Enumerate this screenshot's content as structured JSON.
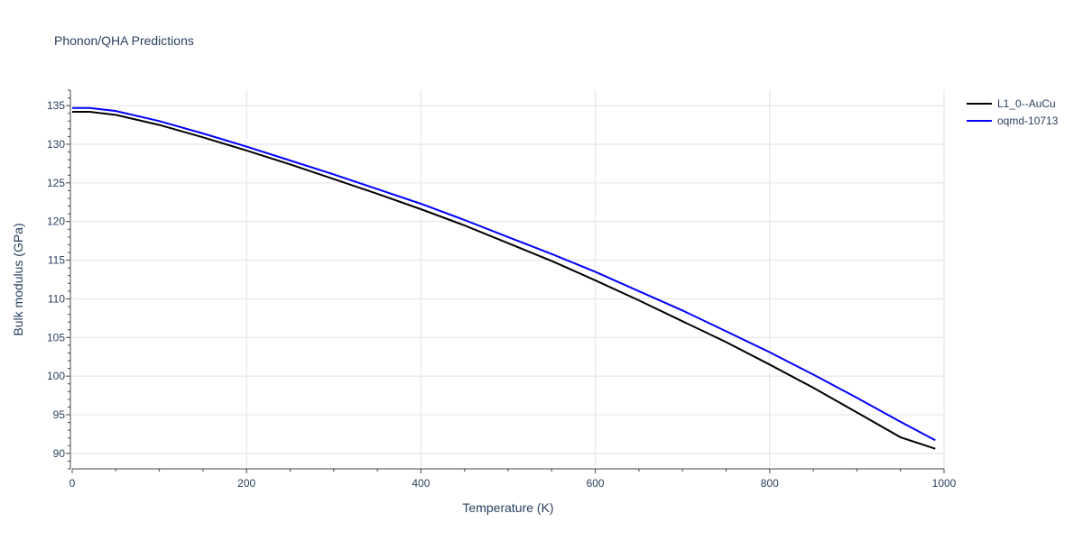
{
  "chart_data": {
    "type": "line",
    "title": "Phonon/QHA Predictions",
    "xlabel": "Temperature (K)",
    "ylabel": "Bulk modulus (GPa)",
    "xlim": [
      0,
      1000
    ],
    "ylim": [
      88,
      137
    ],
    "x_ticks": [
      0,
      200,
      400,
      600,
      800,
      1000
    ],
    "y_ticks": [
      90,
      95,
      100,
      105,
      110,
      115,
      120,
      125,
      130,
      135
    ],
    "grid": true,
    "legend_position": "top-right",
    "series": [
      {
        "name": "L1_0--AuCu",
        "color": "#000000",
        "x": [
          0,
          20,
          50,
          100,
          150,
          200,
          250,
          300,
          350,
          400,
          450,
          500,
          550,
          600,
          650,
          700,
          750,
          800,
          850,
          900,
          950,
          990
        ],
        "values": [
          134.2,
          134.2,
          133.8,
          132.5,
          130.9,
          129.2,
          127.4,
          125.5,
          123.6,
          121.6,
          119.5,
          117.2,
          114.9,
          112.4,
          109.8,
          107.1,
          104.4,
          101.5,
          98.5,
          95.3,
          92.1,
          90.6
        ]
      },
      {
        "name": "oqmd-10713",
        "color": "#0000ff",
        "x": [
          0,
          20,
          50,
          100,
          150,
          200,
          250,
          300,
          350,
          400,
          450,
          500,
          550,
          600,
          650,
          700,
          750,
          800,
          850,
          900,
          950,
          990
        ],
        "values": [
          134.7,
          134.7,
          134.3,
          133.0,
          131.4,
          129.7,
          127.9,
          126.1,
          124.2,
          122.3,
          120.2,
          118.0,
          115.8,
          113.5,
          111.0,
          108.5,
          105.8,
          103.1,
          100.2,
          97.2,
          94.1,
          91.7
        ]
      }
    ]
  }
}
